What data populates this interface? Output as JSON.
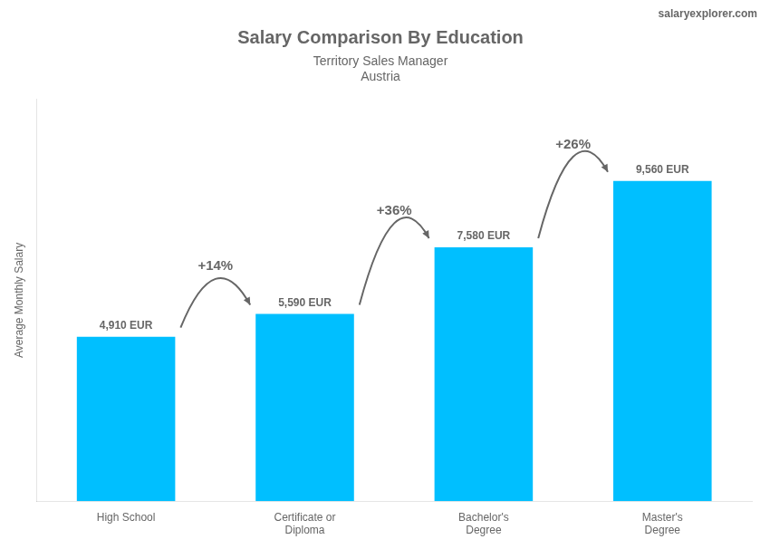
{
  "chart_data": {
    "type": "bar",
    "title": "Salary Comparison By Education",
    "subtitle": [
      "Territory Sales Manager",
      "Austria"
    ],
    "source": "salaryexplorer.com",
    "ylabel": "Average Monthly Salary",
    "categories": [
      "High School",
      "Certificate or\nDiploma",
      "Bachelor's\nDegree",
      "Master's\nDegree"
    ],
    "values": [
      4910,
      5590,
      7580,
      9560
    ],
    "value_labels": [
      "4,910 EUR",
      "5,590 EUR",
      "7,580 EUR",
      "9,560 EUR"
    ],
    "data_labels": true,
    "annotations": [
      "+14%",
      "+36%",
      "+26%"
    ],
    "color": "#00BFFF",
    "ylim": [
      0,
      12000
    ],
    "tick_labels": "x",
    "grid": false
  }
}
